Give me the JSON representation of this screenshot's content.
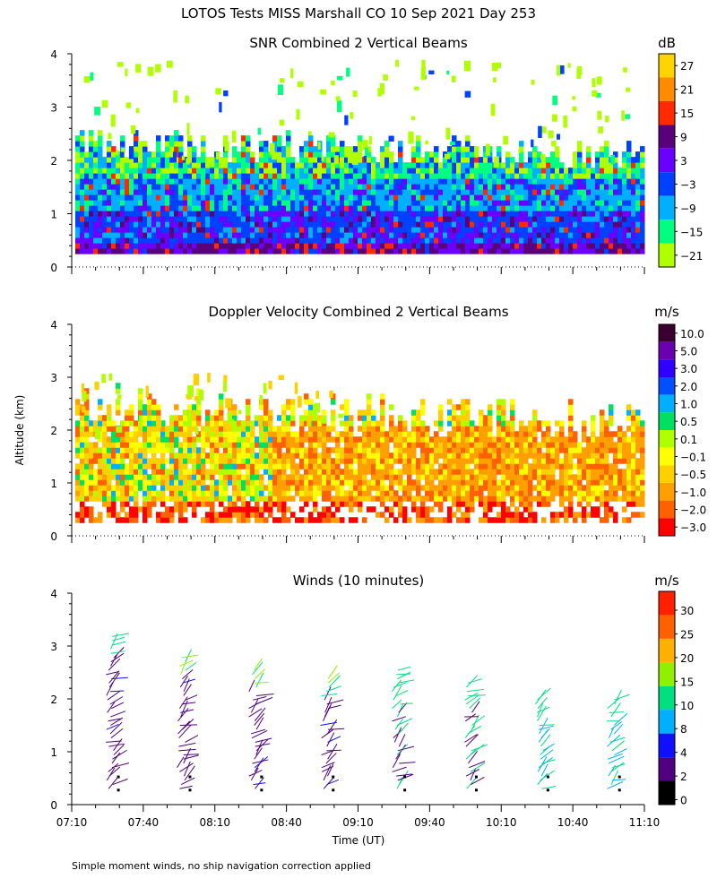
{
  "title": "LOTOS Tests MISS Marshall CO  10 Sep 2021 Day 253",
  "footnote": "Simple moment winds, no ship navigation correction applied",
  "chart_data": [
    {
      "type": "heatmap",
      "title": "SNR Combined 2 Vertical Beams",
      "ylabel": "",
      "ylim": [
        0,
        4
      ],
      "yticks": [
        "0",
        "1",
        "2",
        "3",
        "4"
      ],
      "xlim_minutes": [
        430,
        670
      ],
      "colorbar_unit": "dB",
      "colorbar_labels": [
        "27",
        "21",
        "15",
        "9",
        "3",
        "−3",
        "−9",
        "−15",
        "−21"
      ],
      "colors": [
        "#ffd400",
        "#ff8c00",
        "#ff2a00",
        "#5a007a",
        "#6a00ff",
        "#0040ff",
        "#00b0ff",
        "#00ff80",
        "#b0ff00"
      ],
      "data_top_km": 2.3
    },
    {
      "type": "heatmap",
      "title": "Doppler Velocity Combined 2 Vertical Beams",
      "ylabel": "Altitude (km)",
      "ylim": [
        0,
        4
      ],
      "yticks": [
        "0",
        "1",
        "2",
        "3",
        "4"
      ],
      "xlim_minutes": [
        430,
        670
      ],
      "colorbar_unit": "m/s",
      "colorbar_labels": [
        "10.0",
        "5.0",
        "3.0",
        "2.0",
        "1.0",
        "0.5",
        "0.1",
        "−0.1",
        "−0.5",
        "−1.0",
        "−2.0",
        "−3.0"
      ],
      "colors": [
        "#3a0030",
        "#6a00b0",
        "#3000ff",
        "#0050ff",
        "#00b0ff",
        "#00e060",
        "#b0ff00",
        "#ffff00",
        "#ffd000",
        "#ffa000",
        "#ff6000",
        "#ff0000"
      ],
      "data_top_km": 2.2
    },
    {
      "type": "scatter",
      "title": "Winds (10 minutes)",
      "xlabel": "Time (UT)",
      "ylim": [
        0,
        4
      ],
      "yticks": [
        "0",
        "1",
        "2",
        "3",
        "4"
      ],
      "xlim_minutes": [
        430,
        670
      ],
      "xtick_minutes": [
        430,
        460,
        490,
        520,
        550,
        580,
        610,
        640,
        670
      ],
      "xtick_labels": [
        "07:10",
        "07:40",
        "08:10",
        "08:40",
        "09:10",
        "09:40",
        "10:10",
        "10:40",
        "11:10"
      ],
      "colorbar_unit": "m/s",
      "colorbar_labels": [
        "30",
        "25",
        "20",
        "15",
        "10",
        "8",
        "4",
        "2",
        "0"
      ],
      "colors": [
        "#ff2000",
        "#ff6000",
        "#ffb000",
        "#90f000",
        "#00e080",
        "#00b0ff",
        "#1010ff",
        "#500080",
        "#000000"
      ],
      "profile_minutes": [
        446,
        476,
        506,
        536,
        566,
        596,
        626,
        656
      ],
      "profile_top_km": [
        3.2,
        2.85,
        2.6,
        2.4,
        2.55,
        2.35,
        2.0,
        2.05
      ]
    }
  ]
}
